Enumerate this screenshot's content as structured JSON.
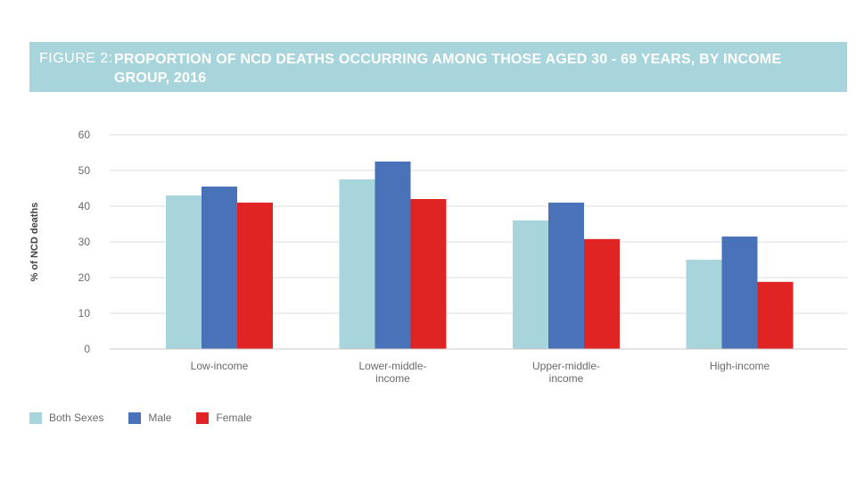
{
  "header": {
    "figure_label": "FIGURE 2:",
    "title": "PROPORTION OF NCD DEATHS OCCURRING AMONG THOSE AGED 30 - 69 YEARS, BY INCOME GROUP, 2016"
  },
  "chart_data": {
    "type": "bar",
    "title": "PROPORTION OF NCD DEATHS OCCURRING AMONG THOSE AGED 30 - 69 YEARS, BY INCOME GROUP, 2016",
    "xlabel": "",
    "ylabel": "% of NCD deaths",
    "ylim": [
      0,
      60
    ],
    "yticks": [
      0,
      10,
      20,
      30,
      40,
      50,
      60
    ],
    "grid": true,
    "legend_position": "bottom-left",
    "categories": [
      [
        "Low-income"
      ],
      [
        "Lower-middle-",
        "income"
      ],
      [
        "Upper-middle-",
        "income"
      ],
      [
        "High-income"
      ]
    ],
    "series": [
      {
        "name": "Both Sexes",
        "color": "#a8d5dc",
        "values": [
          43,
          47.5,
          36,
          25
        ]
      },
      {
        "name": "Male",
        "color": "#4a72b8",
        "values": [
          45.5,
          52.5,
          41,
          31.5
        ]
      },
      {
        "name": "Female",
        "color": "#e02424",
        "values": [
          41,
          42,
          30.8,
          18.8
        ]
      }
    ]
  }
}
